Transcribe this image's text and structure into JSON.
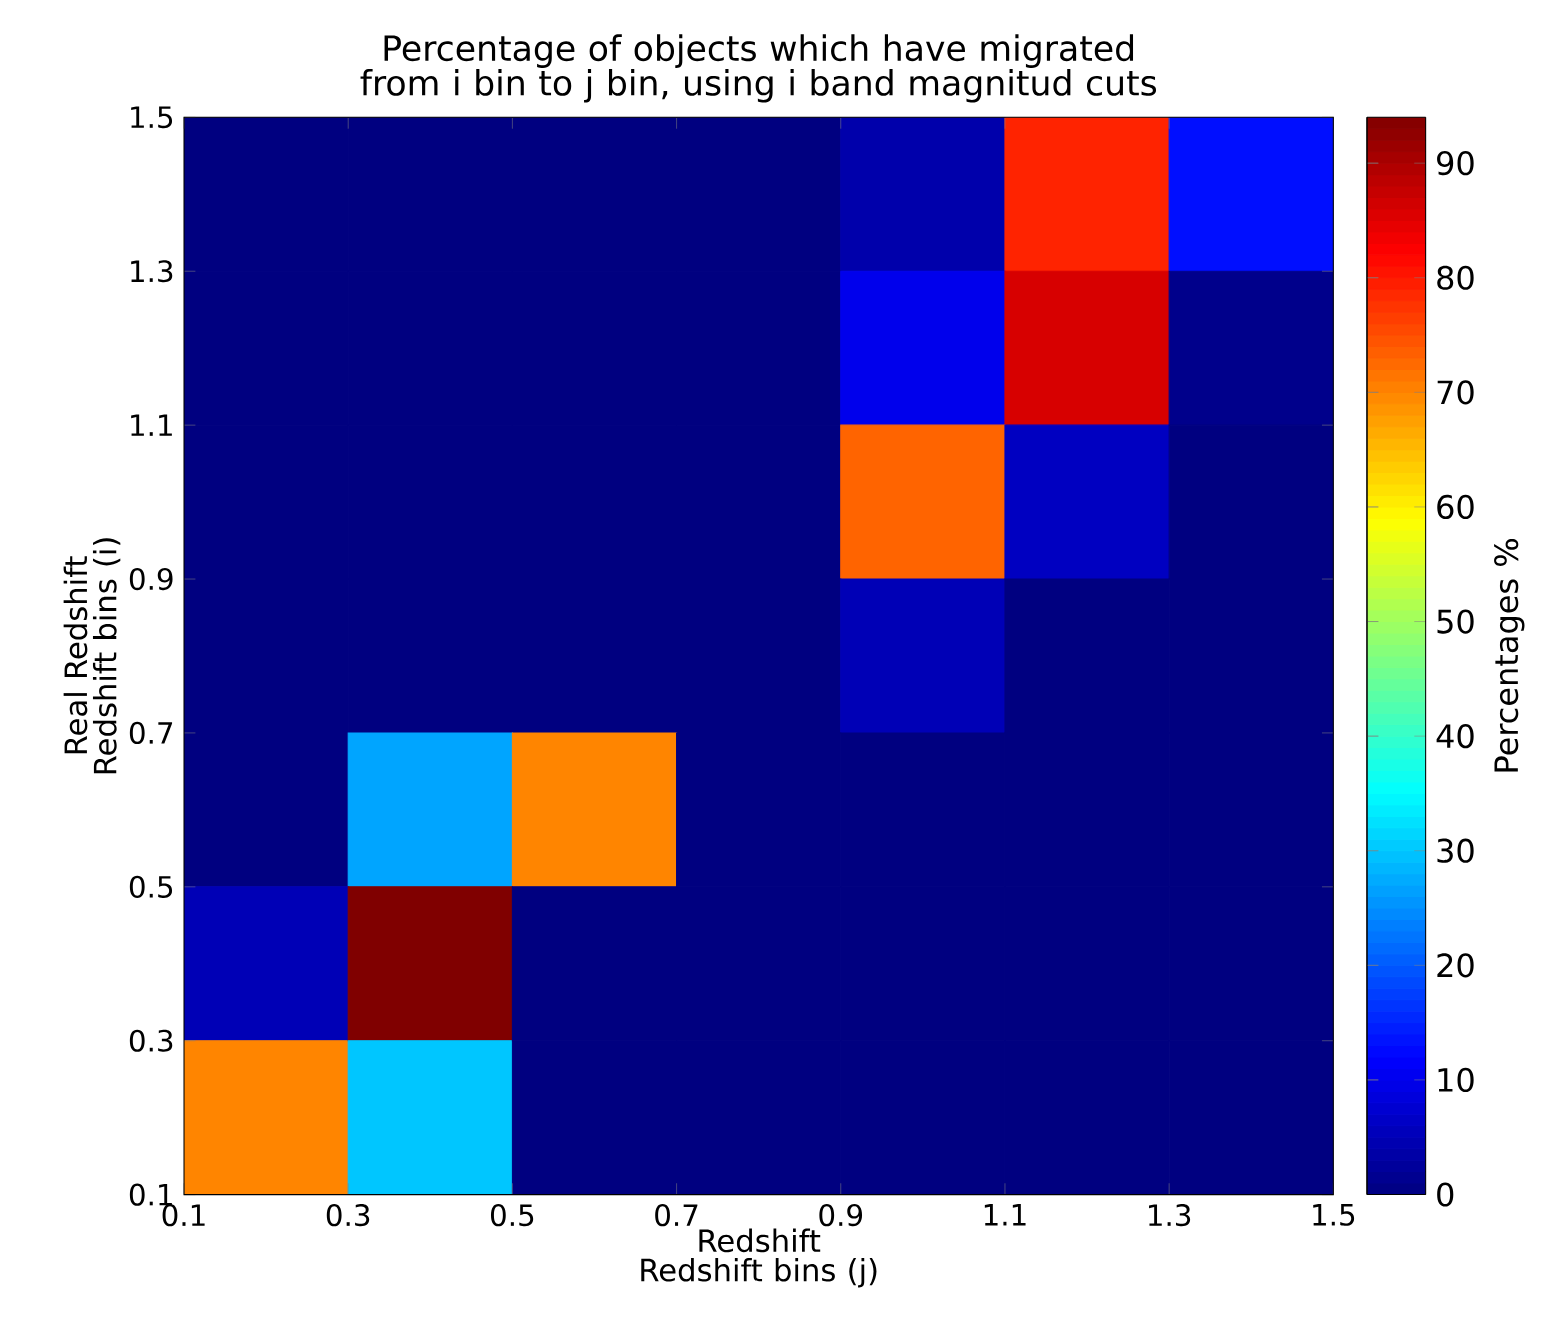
{
  "chart_data": {
    "type": "heatmap",
    "title": "Percentage of objects which have migrated from i bin to j bin, using i band magnitud cuts",
    "xlabel": "Redshift Redshift bins (j)",
    "ylabel": "Real Redshift Redshift bins (i)",
    "clabel": "Percentages %",
    "xlim": [
      0.1,
      1.5
    ],
    "xticks": [
      0.1,
      0.3,
      0.5,
      0.7,
      0.9,
      1.1,
      1.3,
      1.5
    ],
    "ylim": [
      0.1,
      1.5
    ],
    "yticks": [
      0.1,
      0.3,
      0.5,
      0.7,
      0.9,
      1.1,
      1.3,
      1.5
    ],
    "cells": [
      [
        0,
        0,
        0,
        0,
        4,
        79,
        13
      ],
      [
        0,
        0,
        0,
        0,
        10,
        86,
        1
      ],
      [
        0,
        0,
        0,
        0,
        73,
        6,
        0
      ],
      [
        0,
        0,
        0,
        0,
        5,
        0,
        0
      ],
      [
        0,
        27,
        70,
        0,
        0,
        0,
        0
      ],
      [
        5,
        94,
        0,
        0,
        0,
        0,
        0
      ],
      [
        70,
        30,
        0,
        0,
        0,
        0,
        0
      ]
    ],
    "clim": [
      0,
      94
    ],
    "cticks": [
      0,
      10,
      20,
      30,
      40,
      50,
      60,
      70,
      80,
      90
    ]
  }
}
